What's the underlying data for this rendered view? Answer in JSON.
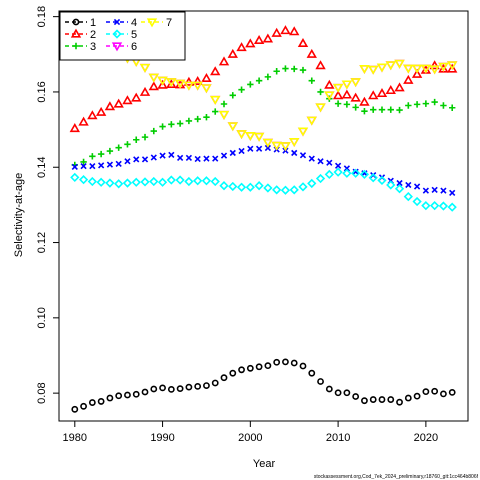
{
  "chart_data": {
    "type": "scatter",
    "xlabel": "Year",
    "ylabel": "Selectivity-at-age",
    "xlim": [
      1978.2,
      2024.8
    ],
    "ylim": [
      0.0726,
      0.1815
    ],
    "xticks": [
      1980,
      1990,
      2000,
      2010,
      2020
    ],
    "yticks": [
      0.08,
      0.1,
      0.12,
      0.14,
      0.16,
      0.18
    ],
    "ytick_labels": [
      "0.08",
      "0.10",
      "0.12",
      "0.14",
      "0.16",
      "0.18"
    ],
    "legend_position": "top-left",
    "credit": "stockassessment.org,Cod_7ek_2024_preliminary,r18760_git:1cc464b806f",
    "years": [
      1980,
      1981,
      1982,
      1983,
      1984,
      1985,
      1986,
      1987,
      1988,
      1989,
      1990,
      1991,
      1992,
      1993,
      1994,
      1995,
      1996,
      1997,
      1998,
      1999,
      2000,
      2001,
      2002,
      2003,
      2004,
      2005,
      2006,
      2007,
      2008,
      2009,
      2010,
      2011,
      2012,
      2013,
      2014,
      2015,
      2016,
      2017,
      2018,
      2019,
      2020,
      2021,
      2022,
      2023
    ],
    "series": [
      {
        "name": "1",
        "color": "#000000",
        "marker": "circle",
        "values": [
          0.0757,
          0.0765,
          0.0775,
          0.0778,
          0.0787,
          0.0793,
          0.0795,
          0.0797,
          0.0803,
          0.0811,
          0.0814,
          0.081,
          0.0812,
          0.0816,
          0.0818,
          0.082,
          0.0827,
          0.0841,
          0.0853,
          0.0862,
          0.0866,
          0.087,
          0.0873,
          0.0882,
          0.0883,
          0.088,
          0.0872,
          0.0853,
          0.0831,
          0.0811,
          0.0801,
          0.0801,
          0.0791,
          0.078,
          0.0783,
          0.0783,
          0.0783,
          0.0776,
          0.0787,
          0.0792,
          0.0804,
          0.0805,
          0.0798,
          0.0802
        ]
      },
      {
        "name": "2",
        "color": "#ff0000",
        "marker": "triangle",
        "values": [
          0.1503,
          0.152,
          0.1537,
          0.1546,
          0.1561,
          0.1568,
          0.1577,
          0.1584,
          0.1599,
          0.1614,
          0.1618,
          0.162,
          0.1619,
          0.1626,
          0.1628,
          0.1636,
          0.1654,
          0.168,
          0.17,
          0.1718,
          0.1728,
          0.1737,
          0.1741,
          0.1756,
          0.1763,
          0.176,
          0.1729,
          0.17,
          0.167,
          0.1618,
          0.159,
          0.1592,
          0.1584,
          0.1573,
          0.159,
          0.1596,
          0.1604,
          0.1611,
          0.1631,
          0.1647,
          0.1658,
          0.167,
          0.1661,
          0.1661
        ]
      },
      {
        "name": "3",
        "color": "#00cd00",
        "marker": "plus",
        "values": [
          0.1406,
          0.1414,
          0.1429,
          0.1435,
          0.1443,
          0.1452,
          0.1461,
          0.1473,
          0.148,
          0.1496,
          0.1508,
          0.1514,
          0.1516,
          0.1523,
          0.1528,
          0.1533,
          0.1548,
          0.1568,
          0.1591,
          0.1606,
          0.162,
          0.163,
          0.164,
          0.1655,
          0.1662,
          0.1661,
          0.1658,
          0.163,
          0.16,
          0.1582,
          0.1569,
          0.1567,
          0.1559,
          0.1549,
          0.1553,
          0.1553,
          0.1553,
          0.1552,
          0.1564,
          0.1567,
          0.1569,
          0.1573,
          0.1564,
          0.1558
        ]
      },
      {
        "name": "4",
        "color": "#0000ff",
        "marker": "cross",
        "values": [
          0.1401,
          0.1403,
          0.1403,
          0.1405,
          0.1407,
          0.1409,
          0.1416,
          0.1421,
          0.1421,
          0.1426,
          0.1431,
          0.1433,
          0.1425,
          0.1425,
          0.1422,
          0.1423,
          0.1423,
          0.1431,
          0.1438,
          0.1443,
          0.1449,
          0.1449,
          0.1451,
          0.1447,
          0.1444,
          0.1438,
          0.1432,
          0.1423,
          0.1416,
          0.1412,
          0.1404,
          0.1397,
          0.1388,
          0.1384,
          0.1379,
          0.1373,
          0.1364,
          0.1358,
          0.1353,
          0.1349,
          0.1338,
          0.134,
          0.1338,
          0.1332
        ]
      },
      {
        "name": "5",
        "color": "#00ffff",
        "marker": "diamond",
        "values": [
          0.1373,
          0.1367,
          0.1362,
          0.136,
          0.1358,
          0.1356,
          0.1358,
          0.136,
          0.1361,
          0.1362,
          0.136,
          0.1366,
          0.1366,
          0.1362,
          0.1364,
          0.1364,
          0.1362,
          0.1351,
          0.1349,
          0.1347,
          0.1347,
          0.1351,
          0.1345,
          0.134,
          0.1339,
          0.134,
          0.1348,
          0.1357,
          0.137,
          0.1381,
          0.1387,
          0.1384,
          0.1384,
          0.1381,
          0.1372,
          0.1365,
          0.1353,
          0.1343,
          0.1322,
          0.1309,
          0.1298,
          0.1298,
          0.1297,
          0.1294
        ]
      },
      {
        "name": "6",
        "color": "#ff00ff",
        "marker": "triangle-down",
        "values": [
          null,
          null,
          null,
          null,
          null,
          null,
          0.169,
          0.1681,
          0.1665,
          0.1639,
          0.1631,
          0.1627,
          0.1623,
          0.1618,
          0.1618,
          0.1611,
          0.158,
          0.154,
          0.151,
          0.1489,
          0.1484,
          0.1482,
          0.1466,
          0.1458,
          0.1457,
          0.1468,
          0.1496,
          0.1525,
          0.156,
          0.1592,
          0.1612,
          0.1621,
          0.1627,
          0.1662,
          0.166,
          0.1666,
          0.1672,
          0.1676,
          0.1663,
          0.1663,
          0.1663,
          0.1661,
          0.1668,
          0.1672
        ]
      },
      {
        "name": "7",
        "color": "#ffff00",
        "marker": "triangle-down",
        "values": [
          null,
          null,
          null,
          null,
          null,
          null,
          0.169,
          0.1681,
          0.1665,
          0.1639,
          0.1631,
          0.1627,
          0.1623,
          0.1618,
          0.1618,
          0.1611,
          0.158,
          0.154,
          0.151,
          0.1489,
          0.1484,
          0.1482,
          0.1466,
          0.1458,
          0.1457,
          0.1468,
          0.1496,
          0.1525,
          0.156,
          0.1592,
          0.1612,
          0.1621,
          0.1627,
          0.1662,
          0.166,
          0.1666,
          0.1672,
          0.1676,
          0.1663,
          0.1663,
          0.1663,
          0.1661,
          0.1668,
          0.1672
        ]
      }
    ]
  }
}
